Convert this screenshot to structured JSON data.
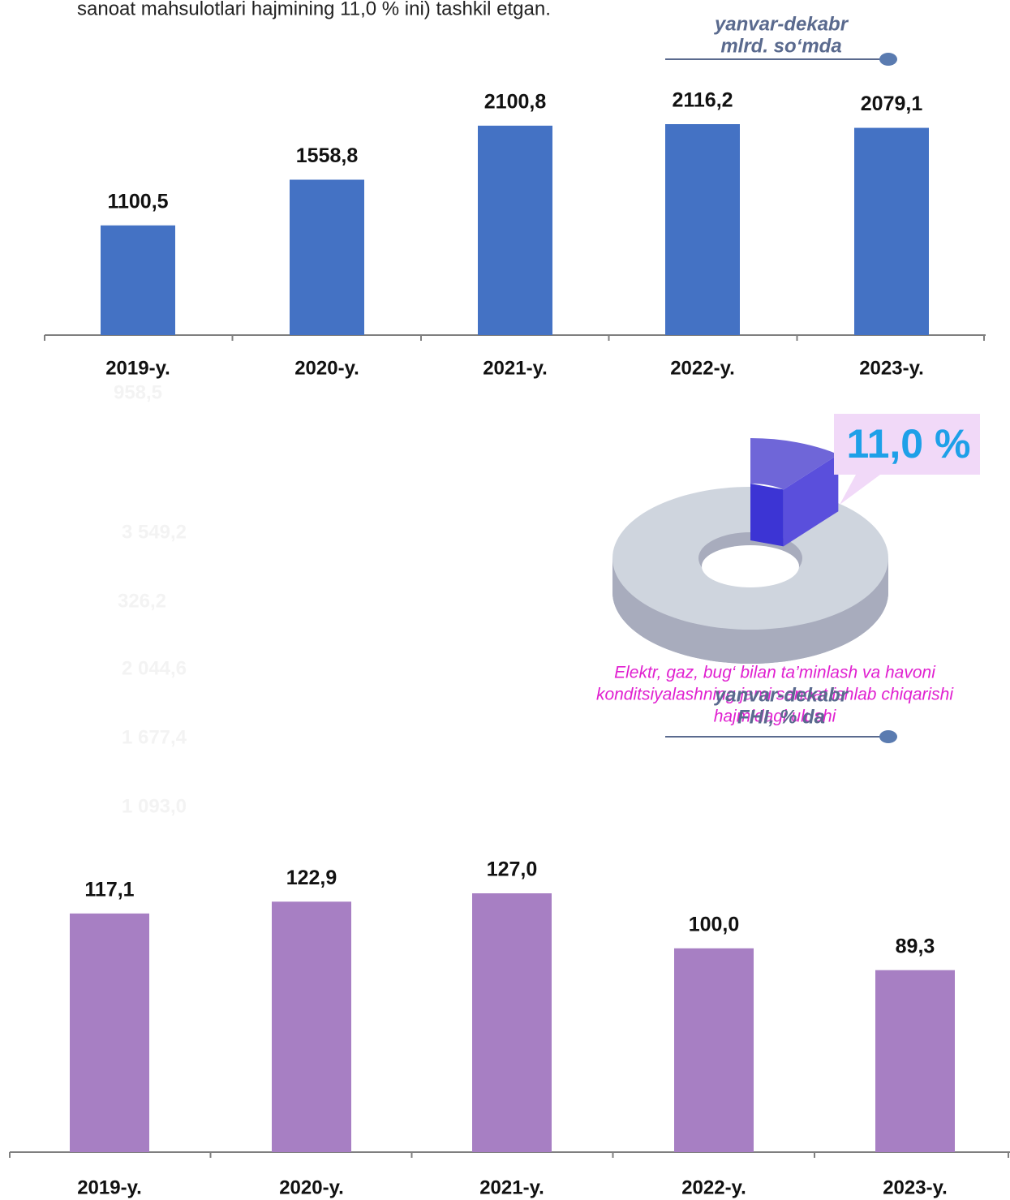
{
  "header_text": "sanoat mahsulotlari hajmining 11,0 % ini) tashkil etgan.",
  "faded_labels": [
    "958,5",
    "3 549,2",
    "326,2",
    "2 044,6",
    "1 677,4",
    "1 093,0"
  ],
  "chart_data": [
    {
      "type": "bar",
      "annotation": [
        "yanvar-dekabr",
        "mlrd. so‘mda"
      ],
      "categories": [
        "2019-y.",
        "2020-y.",
        "2021-y.",
        "2022-y.",
        "2023-y."
      ],
      "values": [
        1100.5,
        1558.8,
        2100.8,
        2116.2,
        2079.1
      ],
      "value_labels": [
        "1100,5",
        "1558,8",
        "2100,8",
        "2116,2",
        "2079,1"
      ],
      "color": "#4472c4"
    },
    {
      "type": "pie",
      "values": [
        11.0
      ],
      "value_labels": [
        "11,0 %"
      ],
      "color": "#4a3fd6",
      "caption": [
        "Elektr, gaz, bug‘ bilan ta’minlash va havoni",
        "konditsiyalashning jami sanoat ishlab chiqarishi",
        "hajmidagi ulushi"
      ]
    },
    {
      "type": "bar",
      "annotation": [
        "yanvar-dekabr",
        "FHI, % da"
      ],
      "categories": [
        "2019-y.",
        "2020-y.",
        "2021-y.",
        "2022-y.",
        "2023-y."
      ],
      "values": [
        117.1,
        122.9,
        127.0,
        100.0,
        89.3
      ],
      "value_labels": [
        "117,1",
        "122,9",
        "127,0",
        "100,0",
        "89,3"
      ],
      "color": "#a77fc3"
    }
  ]
}
